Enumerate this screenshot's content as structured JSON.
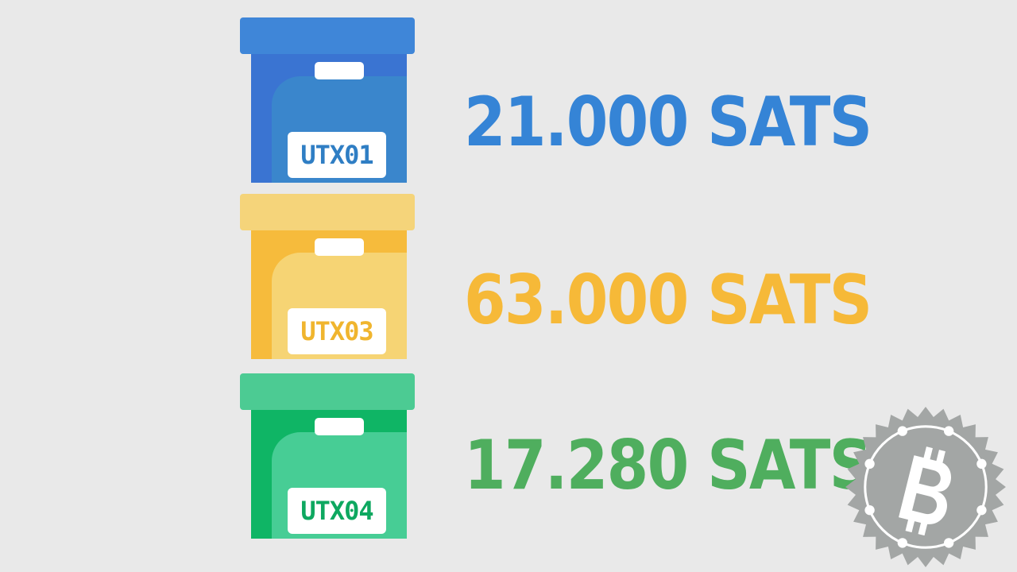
{
  "colors": {
    "background": "#e9e9e9",
    "blue": "#3584d6",
    "yellow": "#f6b938",
    "green": "#4fae5e",
    "seal_gray": "#a3a6a5"
  },
  "boxes": [
    {
      "label": "UTX01",
      "amount": "21.000 SATS",
      "color": "blue"
    },
    {
      "label": "UTX03",
      "amount": "63.000 SATS",
      "color": "yellow"
    },
    {
      "label": "UTX04",
      "amount": "17.280 SATS",
      "color": "green"
    }
  ],
  "logo": {
    "icon": "bitcoin-seal-icon"
  }
}
